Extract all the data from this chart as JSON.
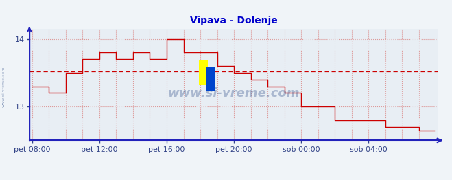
{
  "title": "Vipava - Dolenje",
  "title_color": "#0000cc",
  "bg_color": "#f0f4f8",
  "plot_bg_color": "#e8eef4",
  "line_color": "#cc0000",
  "line_width": 1.0,
  "axis_color": "#2222bb",
  "tick_color": "#334488",
  "watermark_text": "www.si-vreme.com",
  "watermark_color": "#1a3a7a",
  "side_label": "www.si-vreme.com",
  "ylim": [
    12.5,
    14.15
  ],
  "yticks": [
    13.0,
    14.0
  ],
  "avg_line_y": 13.52,
  "avg_line_color": "#cc0000",
  "grid_h_color": "#dd9999",
  "grid_v_color": "#dd9999",
  "legend_color": "#cc0000",
  "x_tick_labels": [
    "pet 08:00",
    "pet 12:00",
    "pet 16:00",
    "pet 20:00",
    "sob 00:00",
    "sob 04:00"
  ],
  "x_tick_positions": [
    0,
    48,
    96,
    144,
    192,
    240
  ],
  "total_points": 288,
  "temperatures": [
    13.3,
    13.3,
    13.3,
    13.3,
    13.3,
    13.3,
    13.3,
    13.3,
    13.3,
    13.3,
    13.3,
    13.3,
    13.2,
    13.2,
    13.2,
    13.2,
    13.2,
    13.2,
    13.2,
    13.2,
    13.2,
    13.2,
    13.2,
    13.2,
    13.5,
    13.5,
    13.5,
    13.5,
    13.5,
    13.5,
    13.5,
    13.5,
    13.5,
    13.5,
    13.5,
    13.5,
    13.7,
    13.7,
    13.7,
    13.7,
    13.7,
    13.7,
    13.7,
    13.7,
    13.7,
    13.7,
    13.7,
    13.7,
    13.8,
    13.8,
    13.8,
    13.8,
    13.8,
    13.8,
    13.8,
    13.8,
    13.8,
    13.8,
    13.8,
    13.8,
    13.7,
    13.7,
    13.7,
    13.7,
    13.7,
    13.7,
    13.7,
    13.7,
    13.7,
    13.7,
    13.7,
    13.7,
    13.8,
    13.8,
    13.8,
    13.8,
    13.8,
    13.8,
    13.8,
    13.8,
    13.8,
    13.8,
    13.8,
    13.8,
    13.7,
    13.7,
    13.7,
    13.7,
    13.7,
    13.7,
    13.7,
    13.7,
    13.7,
    13.7,
    13.7,
    13.7,
    14.0,
    14.0,
    14.0,
    14.0,
    14.0,
    14.0,
    14.0,
    14.0,
    14.0,
    14.0,
    14.0,
    14.0,
    13.8,
    13.8,
    13.8,
    13.8,
    13.8,
    13.8,
    13.8,
    13.8,
    13.8,
    13.8,
    13.8,
    13.8,
    13.8,
    13.8,
    13.8,
    13.8,
    13.8,
    13.8,
    13.8,
    13.8,
    13.8,
    13.8,
    13.8,
    13.8,
    13.6,
    13.6,
    13.6,
    13.6,
    13.6,
    13.6,
    13.6,
    13.6,
    13.6,
    13.6,
    13.6,
    13.6,
    13.5,
    13.5,
    13.5,
    13.5,
    13.5,
    13.5,
    13.5,
    13.5,
    13.5,
    13.5,
    13.5,
    13.5,
    13.4,
    13.4,
    13.4,
    13.4,
    13.4,
    13.4,
    13.4,
    13.4,
    13.4,
    13.4,
    13.4,
    13.4,
    13.3,
    13.3,
    13.3,
    13.3,
    13.3,
    13.3,
    13.3,
    13.3,
    13.3,
    13.3,
    13.3,
    13.3,
    13.2,
    13.2,
    13.2,
    13.2,
    13.2,
    13.2,
    13.2,
    13.2,
    13.2,
    13.2,
    13.2,
    13.2,
    13.0,
    13.0,
    13.0,
    13.0,
    13.0,
    13.0,
    13.0,
    13.0,
    13.0,
    13.0,
    13.0,
    13.0,
    13.0,
    13.0,
    13.0,
    13.0,
    13.0,
    13.0,
    13.0,
    13.0,
    13.0,
    13.0,
    13.0,
    13.0,
    12.8,
    12.8,
    12.8,
    12.8,
    12.8,
    12.8,
    12.8,
    12.8,
    12.8,
    12.8,
    12.8,
    12.8,
    12.8,
    12.8,
    12.8,
    12.8,
    12.8,
    12.8,
    12.8,
    12.8,
    12.8,
    12.8,
    12.8,
    12.8,
    12.8,
    12.8,
    12.8,
    12.8,
    12.8,
    12.8,
    12.8,
    12.8,
    12.8,
    12.8,
    12.8,
    12.8,
    12.7,
    12.7,
    12.7,
    12.7,
    12.7,
    12.7,
    12.7,
    12.7,
    12.7,
    12.7,
    12.7,
    12.7,
    12.7,
    12.7,
    12.7,
    12.7,
    12.7,
    12.7,
    12.7,
    12.7,
    12.7,
    12.7,
    12.7,
    12.7,
    12.65,
    12.65,
    12.65,
    12.65,
    12.65,
    12.65,
    12.65,
    12.65,
    12.65,
    12.65,
    12.65,
    12.65
  ]
}
